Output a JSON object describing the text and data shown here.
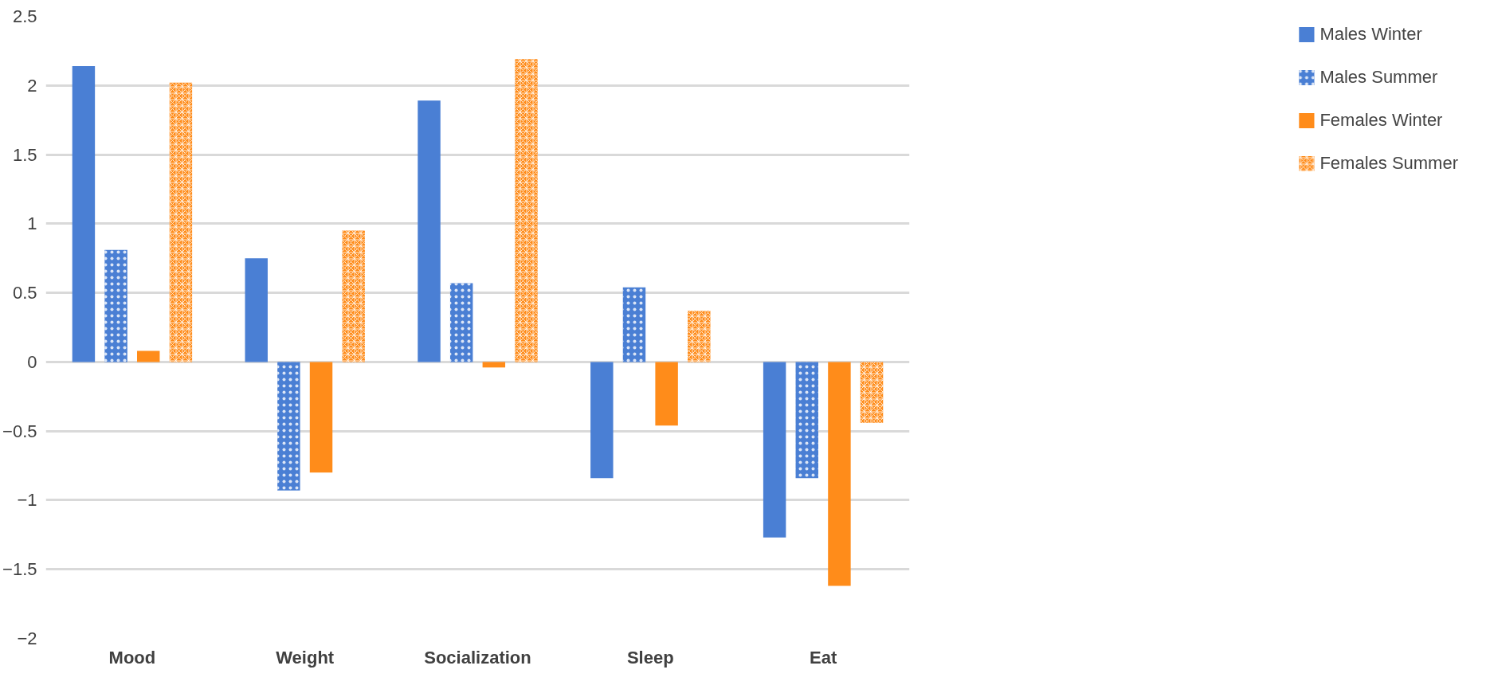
{
  "chart_data": {
    "type": "bar",
    "categories": [
      "Mood",
      "Weight",
      "Socialization",
      "Sleep",
      "Eat"
    ],
    "series": [
      {
        "name": "Males Winter",
        "color": "#4a7fd4",
        "values": [
          2.14,
          0.75,
          1.89,
          -0.84,
          -1.27
        ]
      },
      {
        "name": "Males Summer",
        "color": "#4a7fd4",
        "values": [
          0.81,
          -0.93,
          0.57,
          0.54,
          -0.84
        ]
      },
      {
        "name": "Females Winter",
        "color": "#ff8c1a",
        "values": [
          0.08,
          -0.8,
          -0.04,
          -0.46,
          -1.62
        ]
      },
      {
        "name": "Females Summer",
        "color": "#ff8c1a",
        "values": [
          2.02,
          0.95,
          2.19,
          0.37,
          -0.44
        ]
      }
    ],
    "ylim": [
      -2,
      2.5
    ],
    "yticks": [
      -2,
      -1.5,
      -1,
      -0.5,
      0,
      0.5,
      1,
      1.5,
      2,
      2.5
    ],
    "grid": "y",
    "legend": "right"
  }
}
